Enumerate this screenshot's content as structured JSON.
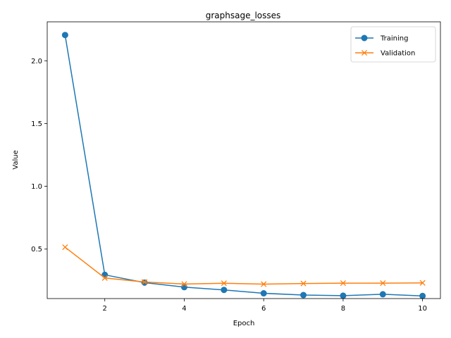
{
  "chart_data": {
    "type": "line",
    "title": "graphsage_losses",
    "xlabel": "Epoch",
    "ylabel": "Value",
    "x": [
      1,
      2,
      3,
      4,
      5,
      6,
      7,
      8,
      9,
      10
    ],
    "xlim": [
      0.55,
      10.45
    ],
    "ylim": [
      0.106,
      2.31
    ],
    "xticks": [
      2,
      4,
      6,
      8,
      10
    ],
    "yticks": [
      0.5,
      1.0,
      1.5,
      2.0
    ],
    "ytick_labels": [
      "0.5",
      "1.0",
      "1.5",
      "2.0"
    ],
    "grid": false,
    "legend_position": "top-right",
    "series": [
      {
        "name": "Training",
        "color": "#1f77b4",
        "marker": "circle",
        "values": [
          2.205,
          0.295,
          0.233,
          0.197,
          0.175,
          0.148,
          0.134,
          0.129,
          0.14,
          0.127
        ]
      },
      {
        "name": "Validation",
        "color": "#ff7f0e",
        "marker": "x",
        "values": [
          0.515,
          0.27,
          0.238,
          0.222,
          0.228,
          0.221,
          0.226,
          0.229,
          0.229,
          0.231
        ]
      }
    ]
  }
}
